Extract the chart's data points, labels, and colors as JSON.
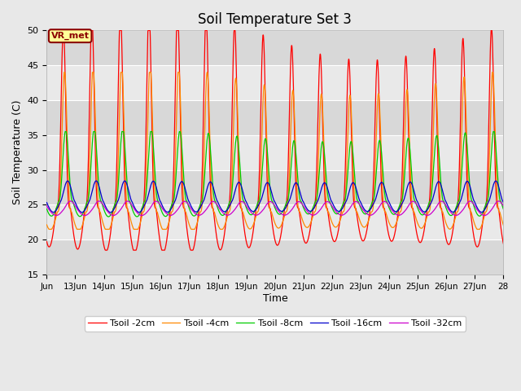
{
  "title": "Soil Temperature Set 3",
  "xlabel": "Time",
  "ylabel": "Soil Temperature (C)",
  "ylim": [
    15,
    50
  ],
  "xlim": [
    0,
    16
  ],
  "xtick_labels": [
    "Jun",
    "13Jun",
    "14Jun",
    "15Jun",
    "16Jun",
    "17Jun",
    "18Jun",
    "19Jun",
    "20Jun",
    "21Jun",
    "22Jun",
    "23Jun",
    "24Jun",
    "25Jun",
    "26Jun",
    "27Jun",
    "28"
  ],
  "xtick_positions": [
    0,
    1,
    2,
    3,
    4,
    5,
    6,
    7,
    8,
    9,
    10,
    11,
    12,
    13,
    14,
    15,
    16
  ],
  "ytick_positions": [
    15,
    20,
    25,
    30,
    35,
    40,
    45,
    50
  ],
  "line_colors": [
    "#ff0000",
    "#ff8800",
    "#00cc00",
    "#0000cc",
    "#cc00cc"
  ],
  "line_labels": [
    "Tsoil -2cm",
    "Tsoil -4cm",
    "Tsoil -8cm",
    "Tsoil -16cm",
    "Tsoil -32cm"
  ],
  "background_color": "#e8e8e8",
  "plot_bg_color": "#d8d8d8",
  "annotation_text": "VR_met",
  "annotation_bg": "#ffff99",
  "annotation_border": "#8b0000"
}
